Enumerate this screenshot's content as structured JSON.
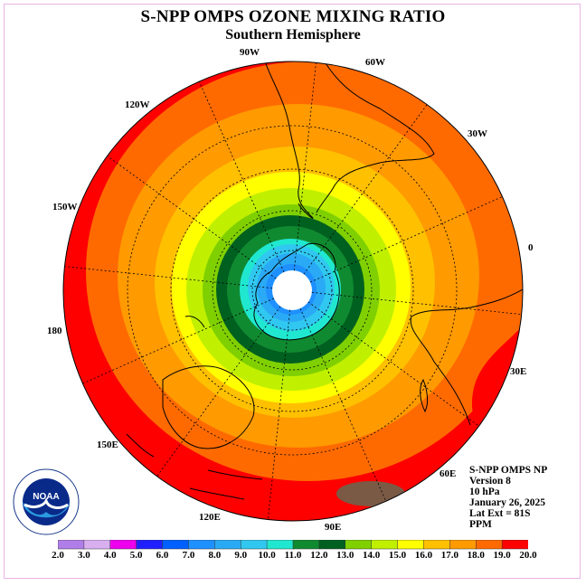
{
  "header": {
    "title": "S-NPP OMPS OZONE MIXING RATIO",
    "subtitle": "Southern Hemisphere"
  },
  "longitude_labels": [
    "90W",
    "60W",
    "30W",
    "0",
    "30E",
    "60E",
    "90E",
    "120E",
    "150E",
    "180",
    "150W",
    "120W"
  ],
  "info": {
    "line1": "S-NPP OMPS NP",
    "line2": "Version 8",
    "line3": "10 hPa",
    "line4": "January 26, 2025",
    "line5": "Lat Ext = 81S",
    "line6": "PPM"
  },
  "logo": {
    "text": "NOAA"
  },
  "colorbar": {
    "labels": [
      "2.0",
      "3.0",
      "4.0",
      "5.0",
      "6.0",
      "7.0",
      "8.0",
      "9.0",
      "10.0",
      "11.0",
      "12.0",
      "13.0",
      "14.0",
      "15.0",
      "16.0",
      "17.0",
      "18.0",
      "19.0",
      "20.0"
    ],
    "colors": [
      "#b07ee8",
      "#d8b0f0",
      "#ee00ee",
      "#2020ff",
      "#0060ff",
      "#1e90ff",
      "#2aaaf5",
      "#30c8f0",
      "#20e8d0",
      "#108a30",
      "#006020",
      "#80d000",
      "#c0f000",
      "#ffff00",
      "#ffc000",
      "#ff9a00",
      "#ff6a00",
      "#ff0000",
      "#8b5a3c"
    ]
  },
  "map_data": {
    "projection": "south polar stereographic",
    "variable": "ozone mixing ratio (PPM)",
    "center": "South Pole (no data cap)",
    "ring_levels_ppm": [
      10,
      11,
      12,
      13,
      14,
      15,
      16,
      17,
      18,
      19
    ],
    "ring_colors": [
      "#20e8d0",
      "#108a30",
      "#006020",
      "#80d000",
      "#c0f000",
      "#ffff00",
      "#ffc000",
      "#ff9a00",
      "#ff6a00",
      "#ff0000"
    ],
    "inner_levels_ppm": [
      7,
      8,
      9
    ],
    "inner_colors": [
      "#1e90ff",
      "#2aaaf5",
      "#30c8f0"
    ],
    "edge_value_ppm": 18,
    "local_max_ppm": 20
  }
}
